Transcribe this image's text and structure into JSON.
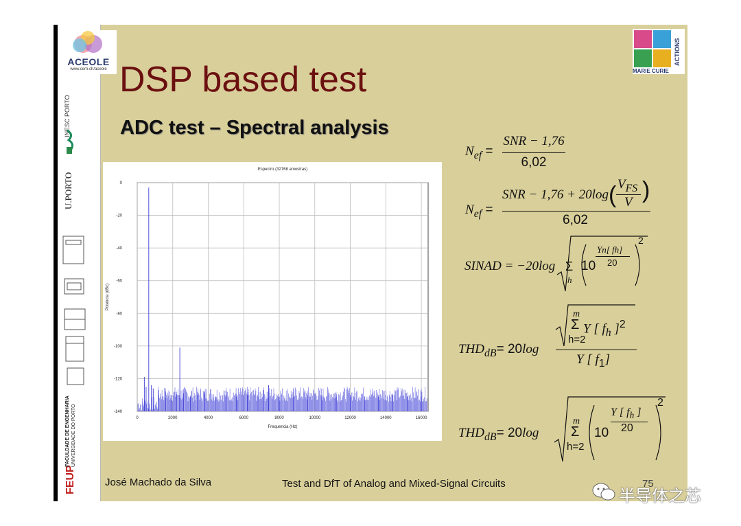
{
  "slide": {
    "title": "DSP based test",
    "subtitle": "ADC test – Spectral analysis",
    "footer_author": "José Machado da Silva",
    "footer_course": "Test and DfT of Analog and Mixed-Signal Circuits",
    "page_number": "75",
    "watermark": "半导体之芯"
  },
  "logos": {
    "aceole_name": "ACEOLE",
    "aceole_url": "www.cern.ch/aceole",
    "marie_curie_top": "ACTIONS",
    "marie_curie_bottom": "MARIE CURIE",
    "inesc": "INESC PORTO",
    "uporto": "U.PORTO",
    "feup_short": "FEUP",
    "feup_long_1": "FACULDADE DE ENGENHARIA",
    "feup_long_2": "UNIVERSIDADE DO PORTO"
  },
  "formulas": {
    "nef1_lhs": "N",
    "nef1_sub": "ef",
    "nef1_num": "SNR − 1,76",
    "nef1_den": "6,02",
    "nef2_lhs": "N",
    "nef2_sub": "ef",
    "nef2_num_a": "SNR − 1,76 + 20",
    "nef2_log": "log",
    "nef2_vfs": "V",
    "nef2_vfs_sub": "FS",
    "nef2_v": "V",
    "nef2_den": "6,02",
    "sinad_lhs": "SINAD = −20",
    "sinad_log": "log",
    "sinad_sum_sub": "h",
    "sinad_ten": "10",
    "sinad_exp_num": "Yn[ fh]",
    "sinad_exp_den": "20",
    "sinad_pow": "2",
    "thd1_lhs": "THD",
    "thd1_sub": "dB",
    "thd1_eq": "= 20",
    "thd1_log": "log",
    "thd1_sum_top": "m",
    "thd1_sum_body": "Y [ f",
    "thd1_sum_body_sub": "h",
    "thd1_sum_body_end": " ]",
    "thd1_sum_pow": "2",
    "thd1_sum_bot": "h=2",
    "thd1_den": "Y [ f",
    "thd1_den_sub": "1",
    "thd1_den_end": "]",
    "thd2_lhs": "THD",
    "thd2_sub": "dB",
    "thd2_eq": "= 20",
    "thd2_log": "log",
    "thd2_sum_top": "m",
    "thd2_sum_bot": "h=2",
    "thd2_ten": "10",
    "thd2_exp_num": "Y [ f",
    "thd2_exp_num_sub": "h",
    "thd2_exp_num_end": " ]",
    "thd2_exp_den": "20",
    "thd2_pow": "2"
  },
  "chart_data": {
    "type": "line",
    "title": "Espectro (32768 amostras)",
    "xlabel": "Frequencia (Hz)",
    "ylabel": "Potencia (dBc)",
    "xlim": [
      0,
      16384
    ],
    "ylim": [
      -140,
      0
    ],
    "x_ticks": [
      0,
      2000,
      4000,
      6000,
      8000,
      10000,
      12000,
      14000,
      16000
    ],
    "y_ticks": [
      0,
      -20,
      -40,
      -60,
      -80,
      -100,
      -120,
      -140
    ],
    "grid": true,
    "series": [
      {
        "color": "#3b3bd6",
        "x": [
          400,
          500,
          650,
          800,
          900,
          1200,
          1600,
          1900,
          2200,
          2400,
          2600,
          3000,
          3400,
          3800,
          4400,
          5000,
          5600,
          6200,
          6800,
          7100,
          7400,
          8000,
          8800,
          9600,
          10400,
          11200,
          12000,
          12800,
          13600,
          14400,
          15200,
          16000
        ],
        "values": [
          -119,
          -125,
          -3,
          -124,
          -126,
          -127,
          -128,
          -130,
          -128,
          -101,
          -129,
          -131,
          -128,
          -129,
          -131,
          -130,
          -131,
          -130,
          -131,
          -127,
          -124,
          -131,
          -131,
          -130,
          -131,
          -131,
          -130,
          -131,
          -131,
          -130,
          -131,
          -131
        ],
        "noise_floor": -134
      }
    ]
  }
}
